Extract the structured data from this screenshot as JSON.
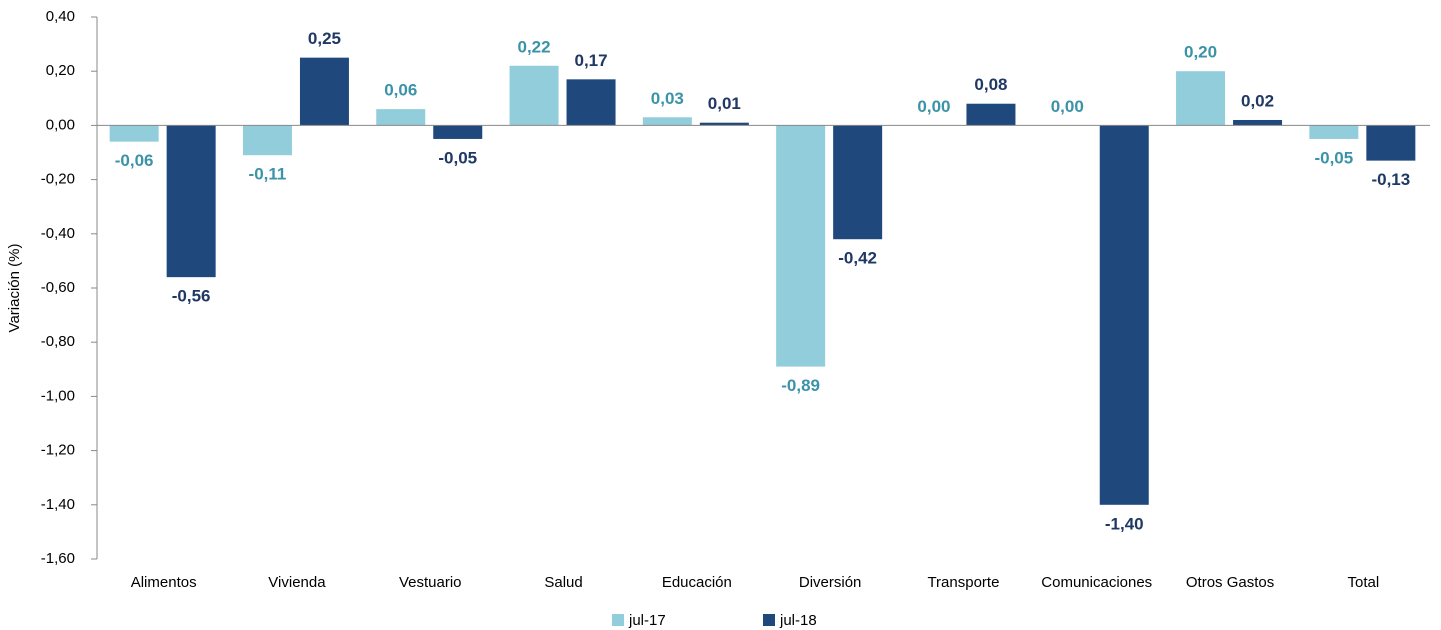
{
  "chart_data": {
    "type": "bar",
    "y_label": "Variación (%)",
    "categories": [
      "Alimentos",
      "Vivienda",
      "Vestuario",
      "Salud",
      "Educación",
      "Diversión",
      "Transporte",
      "Comunicaciones",
      "Otros Gastos",
      "Total"
    ],
    "series": [
      {
        "name": "jul-17",
        "color": "#92cddc",
        "label_color": "#3b93a8",
        "values": [
          -0.06,
          -0.11,
          0.06,
          0.22,
          0.03,
          -0.89,
          0.0,
          0.0,
          0.2,
          -0.05
        ],
        "value_labels": [
          "-0,06",
          "-0,11",
          "0,06",
          "0,22",
          "0,03",
          "-0,89",
          "0,00",
          "0,00",
          "0,20",
          "-0,05"
        ]
      },
      {
        "name": "jul-18",
        "color": "#1f497d",
        "label_color": "#1f3864",
        "values": [
          -0.56,
          0.25,
          -0.05,
          0.17,
          0.01,
          -0.42,
          0.08,
          -1.4,
          0.02,
          -0.13
        ],
        "value_labels": [
          "-0,56",
          "0,25",
          "-0,05",
          "0,17",
          "0,01",
          "-0,42",
          "0,08",
          "-1,40",
          "0,02",
          "-0,13"
        ]
      }
    ],
    "ylim": [
      -1.6,
      0.4
    ],
    "yticks": [
      {
        "value": 0.4,
        "label": "0,40"
      },
      {
        "value": 0.2,
        "label": "0,20"
      },
      {
        "value": 0,
        "label": "0,00"
      },
      {
        "value": -0.2,
        "label": "-0,20"
      },
      {
        "value": -0.4,
        "label": "-0,40"
      },
      {
        "value": -0.6,
        "label": "-0,60"
      },
      {
        "value": -0.8,
        "label": "-0,80"
      },
      {
        "value": -1.0,
        "label": "-1,00"
      },
      {
        "value": -1.2,
        "label": "-1,20"
      },
      {
        "value": -1.4,
        "label": "-1,40"
      },
      {
        "value": -1.6,
        "label": "-1,60"
      }
    ],
    "grid": false,
    "legend": "bottom"
  }
}
